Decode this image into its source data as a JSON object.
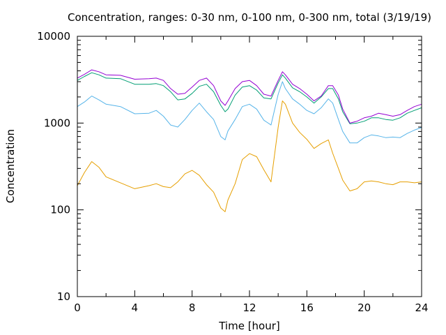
{
  "chart_data": {
    "type": "line",
    "title": "Concentration, ranges: 0-30 nm, 0-100 nm, 0-300 nm, total (3/19/19)",
    "xlabel": "Time [hour]",
    "ylabel": "Concentration",
    "xlim": [
      0,
      24
    ],
    "ylim": [
      10,
      10000
    ],
    "yscale": "log",
    "grid": false,
    "x_ticks": [
      0,
      4,
      8,
      12,
      16,
      20,
      24
    ],
    "x_tick_labels": [
      "0",
      "4",
      "8",
      "12",
      "16",
      "20",
      "24"
    ],
    "y_ticks": [
      10,
      100,
      1000,
      10000
    ],
    "y_tick_labels": [
      "10",
      "100",
      "1000",
      "10000"
    ],
    "x": [
      0,
      0.5,
      1,
      1.5,
      2,
      3,
      4,
      5,
      5.5,
      6,
      6.5,
      7,
      7.5,
      8,
      8.5,
      9,
      9.5,
      10,
      10.3,
      10.5,
      11,
      11.5,
      12,
      12.5,
      13,
      13.5,
      14,
      14.3,
      14.5,
      15,
      15.5,
      16,
      16.5,
      17,
      17.5,
      17.8,
      18.2,
      18.5,
      19,
      19.5,
      20,
      20.5,
      21,
      21.5,
      22,
      22.5,
      23,
      23.5,
      24
    ],
    "series": [
      {
        "color": "#e69f00",
        "values": [
          190,
          270,
          360,
          310,
          240,
          205,
          175,
          190,
          200,
          185,
          180,
          210,
          260,
          285,
          250,
          195,
          160,
          105,
          95,
          130,
          200,
          380,
          445,
          410,
          290,
          210,
          900,
          1800,
          1650,
          1000,
          780,
          650,
          510,
          580,
          640,
          450,
          300,
          220,
          165,
          175,
          210,
          215,
          210,
          200,
          195,
          210,
          210,
          205,
          210
        ]
      },
      {
        "color": "#56b4e9",
        "values": [
          1550,
          1750,
          2050,
          1850,
          1650,
          1550,
          1280,
          1300,
          1400,
          1200,
          950,
          900,
          1100,
          1400,
          1700,
          1350,
          1100,
          700,
          640,
          810,
          1100,
          1550,
          1650,
          1450,
          1080,
          950,
          2150,
          3000,
          2500,
          1900,
          1650,
          1400,
          1280,
          1500,
          1900,
          1700,
          1100,
          800,
          590,
          590,
          680,
          730,
          710,
          680,
          690,
          680,
          760,
          830,
          890
        ]
      },
      {
        "color": "#009e73",
        "values": [
          3100,
          3450,
          3800,
          3600,
          3300,
          3250,
          2800,
          2800,
          2850,
          2700,
          2300,
          1850,
          1900,
          2200,
          2650,
          2800,
          2300,
          1600,
          1350,
          1450,
          2100,
          2600,
          2700,
          2400,
          1950,
          1900,
          2900,
          3600,
          3300,
          2550,
          2300,
          2000,
          1700,
          2000,
          2500,
          2500,
          1900,
          1350,
          980,
          1000,
          1050,
          1150,
          1150,
          1100,
          1080,
          1150,
          1300,
          1400,
          1500
        ]
      },
      {
        "color": "#9400d3",
        "values": [
          3300,
          3650,
          4100,
          3900,
          3600,
          3550,
          3200,
          3250,
          3300,
          3100,
          2500,
          2150,
          2200,
          2600,
          3100,
          3300,
          2700,
          1800,
          1600,
          1800,
          2500,
          3000,
          3100,
          2700,
          2150,
          2050,
          3100,
          3900,
          3600,
          2800,
          2500,
          2150,
          1800,
          2050,
          2700,
          2700,
          2100,
          1450,
          1000,
          1050,
          1150,
          1200,
          1300,
          1250,
          1200,
          1250,
          1400,
          1550,
          1650
        ]
      }
    ]
  }
}
